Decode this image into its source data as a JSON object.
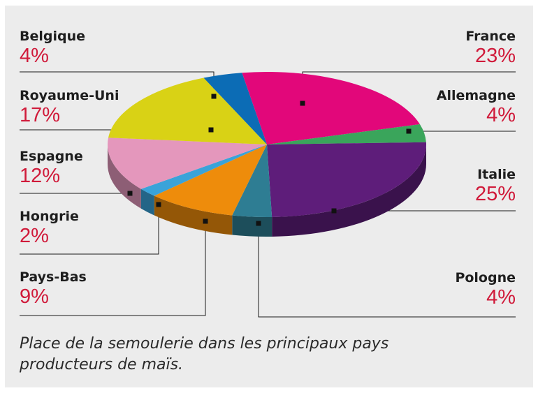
{
  "chart_data": {
    "type": "pie",
    "title": "",
    "slices": [
      {
        "label": "France",
        "pct_label": "23%",
        "value": 23,
        "color": "#e2077a"
      },
      {
        "label": "Allemagne",
        "pct_label": "4%",
        "value": 4,
        "color": "#3aa55b"
      },
      {
        "label": "Italie",
        "pct_label": "25%",
        "value": 25,
        "color": "#5e1d7a"
      },
      {
        "label": "Pologne",
        "pct_label": "4%",
        "value": 4,
        "color": "#2e7d93"
      },
      {
        "label": "Pays-Bas",
        "pct_label": "9%",
        "value": 9,
        "color": "#ee8c0b"
      },
      {
        "label": "Hongrie",
        "pct_label": "2%",
        "value": 2,
        "color": "#3aa3d9"
      },
      {
        "label": "Espagne",
        "pct_label": "12%",
        "value": 12,
        "color": "#e497bc"
      },
      {
        "label": "Royaume-Uni",
        "pct_label": "17%",
        "value": 17,
        "color": "#d9d215"
      },
      {
        "label": "Belgique",
        "pct_label": "4%",
        "value": 4,
        "color": "#0c6cb5"
      }
    ]
  },
  "labels": {
    "belgique": {
      "name": "Belgique",
      "pct": "4%"
    },
    "royaume_uni": {
      "name": "Royaume-Uni",
      "pct": "17%"
    },
    "espagne": {
      "name": "Espagne",
      "pct": "12%"
    },
    "hongrie": {
      "name": "Hongrie",
      "pct": "2%"
    },
    "pays_bas": {
      "name": "Pays-Bas",
      "pct": "9%"
    },
    "france": {
      "name": "France",
      "pct": "23%"
    },
    "allemagne": {
      "name": "Allemagne",
      "pct": "4%"
    },
    "italie": {
      "name": "Italie",
      "pct": "25%"
    },
    "pologne": {
      "name": "Pologne",
      "pct": "4%"
    }
  },
  "caption": "Place de la semoulerie dans les principaux pays producteurs de maïs."
}
